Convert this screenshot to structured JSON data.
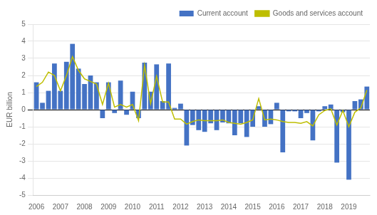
{
  "chart_data": {
    "type": "bar",
    "ylabel": "EUR billion",
    "categories": [
      "2006",
      null,
      null,
      null,
      "2007",
      null,
      null,
      null,
      "2008",
      null,
      null,
      null,
      "2009",
      null,
      null,
      null,
      "2010",
      null,
      null,
      null,
      "2011",
      null,
      null,
      null,
      "2012",
      null,
      null,
      null,
      "2013",
      null,
      null,
      null,
      "2014",
      null,
      null,
      null,
      "2015",
      null,
      null,
      null,
      "2016",
      null,
      null,
      null,
      "2017",
      null,
      null,
      null,
      "2018",
      null,
      null,
      null,
      "2019",
      null,
      null,
      null
    ],
    "series": [
      {
        "name": "Current account",
        "type": "bar",
        "color": "#4472C4",
        "values": [
          1.6,
          0.4,
          1.1,
          2.7,
          1.1,
          2.8,
          3.85,
          2.4,
          1.5,
          2.0,
          1.6,
          -0.5,
          1.6,
          -0.2,
          1.7,
          -0.3,
          1.05,
          -0.5,
          2.75,
          1.05,
          2.65,
          0.5,
          2.7,
          0.1,
          0.35,
          -2.1,
          -0.9,
          -1.2,
          -1.3,
          -0.8,
          -1.2,
          -0.75,
          -0.8,
          -1.5,
          -0.8,
          -1.6,
          -1.0,
          0.2,
          -1.0,
          -0.85,
          0.4,
          -2.5,
          -0.1,
          -0.1,
          -0.5,
          -0.2,
          -1.8,
          -0.1,
          0.2,
          0.3,
          -3.1,
          -0.15,
          -4.1,
          0.5,
          0.6,
          1.35
        ]
      },
      {
        "name": "Goods and services account",
        "type": "line",
        "color": "#BEBE00",
        "values": [
          1.35,
          1.6,
          2.2,
          2.0,
          1.1,
          2.0,
          3.1,
          2.3,
          1.8,
          1.65,
          1.5,
          0.3,
          1.55,
          0.15,
          0.3,
          0.15,
          0.3,
          -0.65,
          2.6,
          0.35,
          1.95,
          0.45,
          0.45,
          -0.55,
          -0.55,
          -0.85,
          -0.7,
          -0.6,
          -0.65,
          -0.65,
          -0.65,
          -0.6,
          -0.75,
          -0.8,
          -0.85,
          -0.75,
          -0.6,
          0.65,
          -0.6,
          -0.55,
          -0.6,
          -0.7,
          -0.75,
          -0.75,
          -0.8,
          -0.7,
          -0.95,
          -0.3,
          -0.05,
          0.05,
          -0.9,
          -0.05,
          -1.0,
          -0.15,
          0.1,
          1.15
        ]
      }
    ],
    "ylim": [
      -5,
      5
    ],
    "yticks": [
      -5,
      -4,
      -3,
      -2,
      -1,
      0,
      1,
      2,
      3,
      4,
      5
    ],
    "grid": "y",
    "legend": "upper right"
  }
}
